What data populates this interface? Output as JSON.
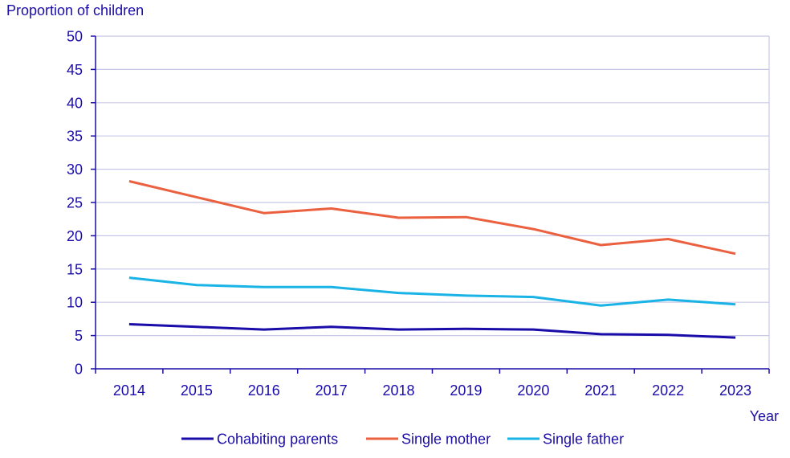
{
  "chart_data": {
    "type": "line",
    "ylabel": "Proportion of children",
    "xlabel": "Year",
    "ylim": [
      0,
      50
    ],
    "yticks": [
      0,
      5,
      10,
      15,
      20,
      25,
      30,
      35,
      40,
      45,
      50
    ],
    "categories": [
      "2014",
      "2015",
      "2016",
      "2017",
      "2018",
      "2019",
      "2020",
      "2021",
      "2022",
      "2023"
    ],
    "grid": true,
    "legend_position": "bottom",
    "colors": {
      "axis": "#1a0ca8",
      "grid": "#c8c8e6",
      "text": "#1a0ca8"
    },
    "series": [
      {
        "name": "Cohabiting parents",
        "color": "#1a0ca8",
        "values": [
          6.7,
          6.3,
          5.9,
          6.3,
          5.9,
          6.0,
          5.9,
          5.2,
          5.1,
          4.7
        ]
      },
      {
        "name": "Single mother",
        "color": "#eb6140",
        "values": [
          28.2,
          25.8,
          23.4,
          24.1,
          22.7,
          22.8,
          21.0,
          18.6,
          19.5,
          17.3
        ]
      },
      {
        "name": "Single father",
        "color": "#1ab3e6",
        "values": [
          13.7,
          12.6,
          12.3,
          12.3,
          11.4,
          11.0,
          10.8,
          9.5,
          10.4,
          9.7
        ]
      }
    ]
  }
}
